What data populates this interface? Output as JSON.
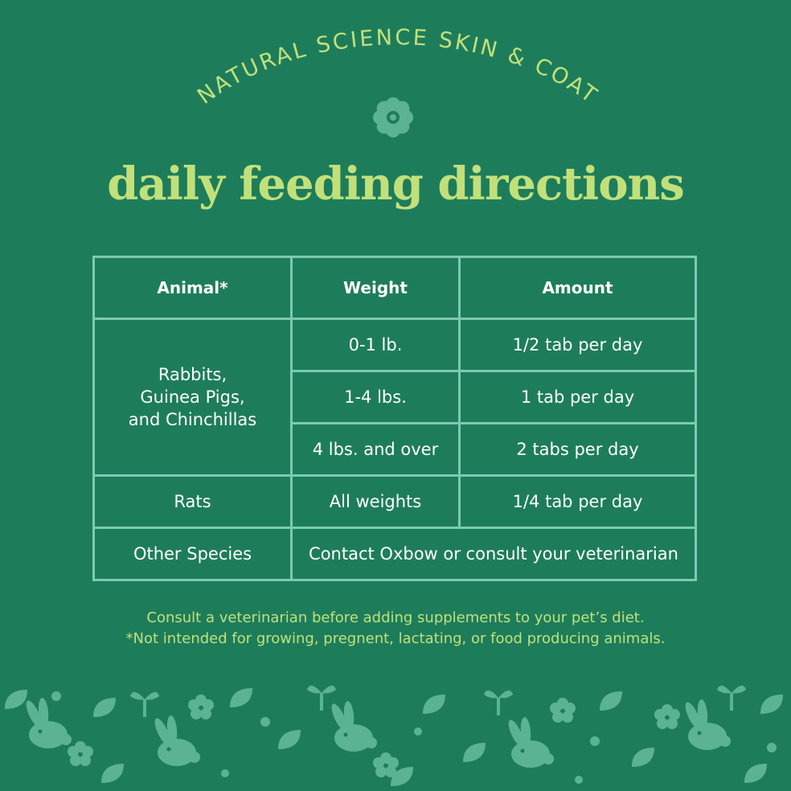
{
  "colors": {
    "background": "#1d7d5b",
    "accent": "#c2e07a",
    "table_border": "#7ccab2",
    "motif": "#5bb394"
  },
  "header": {
    "arc_title": "NATURAL SCIENCE SKIN & COAT",
    "emblem_icon": "flower-icon",
    "title": "daily feeding directions"
  },
  "table": {
    "headers": [
      "Animal*",
      "Weight",
      "Amount"
    ],
    "group1": {
      "animal": [
        "Rabbits,",
        "Guinea Pigs,",
        "and Chinchillas"
      ],
      "rows": [
        {
          "weight": "0-1 lb.",
          "amount": "1/2 tab per day"
        },
        {
          "weight": "1-4 lbs.",
          "amount": "1 tab per day"
        },
        {
          "weight": "4 lbs. and over",
          "amount": "2 tabs per day"
        }
      ]
    },
    "rats": {
      "animal": "Rats",
      "weight": "All weights",
      "amount": "1/4 tab per day"
    },
    "other": {
      "animal": "Other Species",
      "note": "Contact Oxbow or consult your veterinarian"
    }
  },
  "footnotes": [
    "Consult a veterinarian before adding supplements to your pet’s diet.",
    "*Not intended for growing, pregnent, lactating, or food producing animals."
  ],
  "decoration": {
    "pattern_icons": [
      "rabbit-icon",
      "leaf-icon",
      "flower-icon",
      "dot-icon"
    ]
  }
}
